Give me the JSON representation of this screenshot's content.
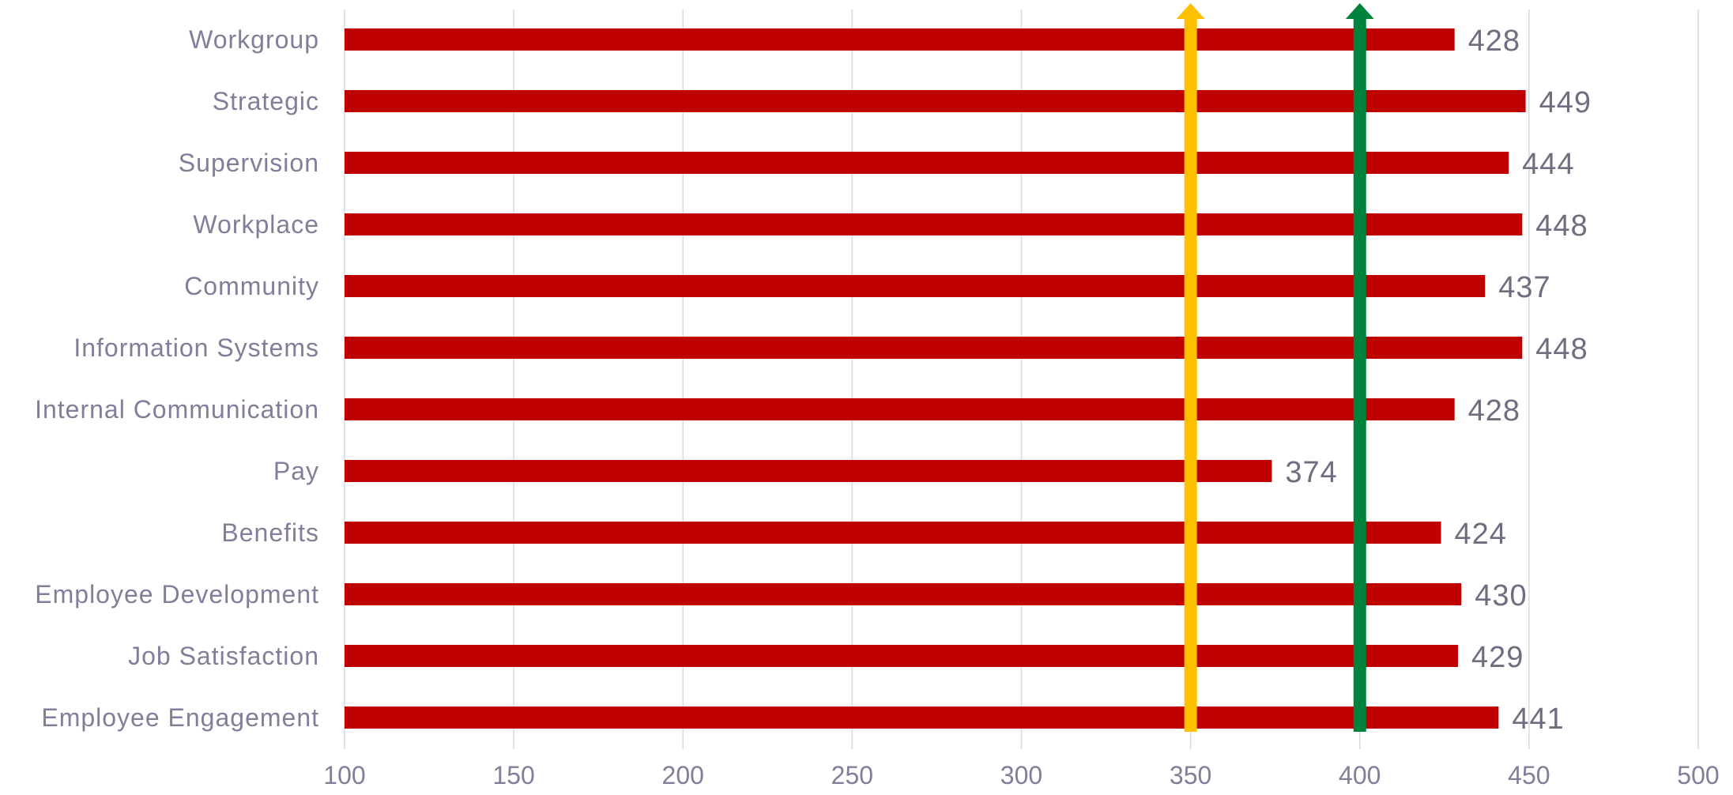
{
  "chart_data": {
    "type": "bar",
    "orientation": "horizontal",
    "categories": [
      "Workgroup",
      "Strategic",
      "Supervision",
      "Workplace",
      "Community",
      "Information Systems",
      "Internal Communication",
      "Pay",
      "Benefits",
      "Employee Development",
      "Job Satisfaction",
      "Employee Engagement"
    ],
    "values": [
      428,
      449,
      444,
      448,
      437,
      448,
      428,
      374,
      424,
      430,
      429,
      441
    ],
    "data_labels": [
      "428",
      "449",
      "444",
      "448",
      "437",
      "448",
      "428",
      "374",
      "424",
      "430",
      "429",
      "441"
    ],
    "xlim": [
      100,
      500
    ],
    "xticks": [
      100,
      150,
      200,
      250,
      300,
      350,
      400,
      450,
      500
    ],
    "xtick_labels": [
      "100",
      "150",
      "200",
      "250",
      "300",
      "350",
      "400",
      "450",
      "500"
    ],
    "reference_lines": [
      {
        "value": 350,
        "color": "#FFC000",
        "style": "arrow-up"
      },
      {
        "value": 400,
        "color": "#00843D",
        "style": "arrow-up"
      }
    ],
    "grid": "vertical",
    "legend": "none",
    "title": "",
    "xlabel": "",
    "ylabel": ""
  },
  "colors": {
    "bar": "#C00000",
    "grid": "#D9D9D9",
    "text": "#7F7F9A",
    "data_label": "#6E6E80"
  }
}
